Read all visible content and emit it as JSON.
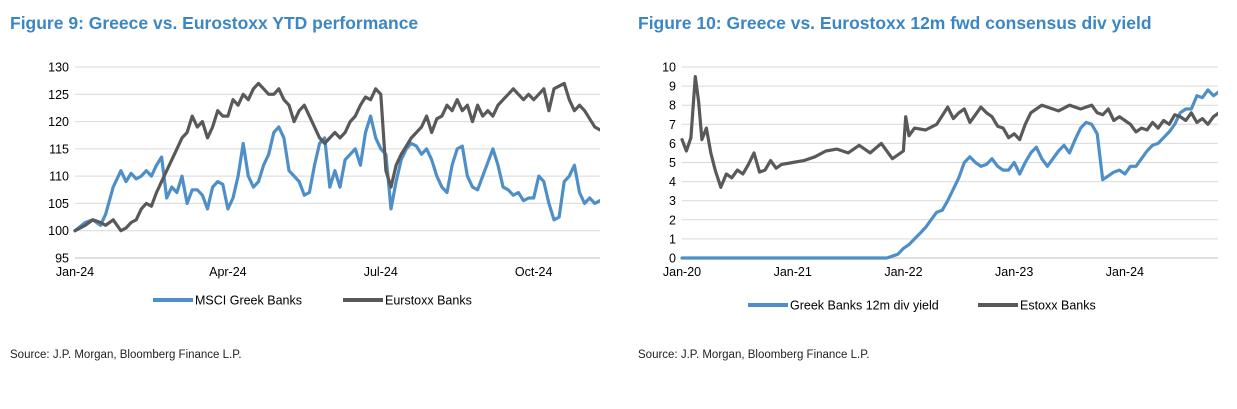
{
  "colors": {
    "title": "#3b86c4",
    "blue_series": "#4f8fc8",
    "grey_series": "#595959",
    "grid": "#d9d9d9"
  },
  "charts": [
    {
      "title": "Figure 9: Greece vs. Eurostoxx YTD performance",
      "source": "Source: J.P. Morgan, Bloomberg Finance L.P."
    },
    {
      "title": "Figure 10: Greece vs. Eurostoxx 12m fwd consensus div yield",
      "source": "Source: J.P. Morgan, Bloomberg Finance L.P."
    }
  ],
  "chart_data": [
    {
      "type": "line",
      "title": "Figure 9: Greece vs. Eurostoxx YTD performance",
      "ylim": [
        95,
        130
      ],
      "yticks": [
        95,
        100,
        105,
        110,
        115,
        120,
        125,
        130
      ],
      "xlim": [
        0,
        10.4
      ],
      "xtick_labels": [
        "Jan-24",
        "Apr-24",
        "Jul-24",
        "Oct-24"
      ],
      "xtick_positions": [
        0,
        3,
        6,
        9
      ],
      "grid": true,
      "legend_position": "bottom",
      "series": [
        {
          "name": "MSCI Greek Banks",
          "color": "#4f8fc8",
          "x": [
            0,
            0.2,
            0.35,
            0.5,
            0.6,
            0.75,
            0.9,
            1.0,
            1.1,
            1.2,
            1.3,
            1.4,
            1.5,
            1.6,
            1.7,
            1.8,
            1.9,
            2.0,
            2.1,
            2.2,
            2.3,
            2.4,
            2.5,
            2.6,
            2.7,
            2.8,
            2.9,
            3.0,
            3.1,
            3.2,
            3.3,
            3.4,
            3.5,
            3.6,
            3.7,
            3.8,
            3.9,
            4.0,
            4.1,
            4.2,
            4.3,
            4.4,
            4.5,
            4.6,
            4.7,
            4.8,
            4.9,
            5.0,
            5.1,
            5.2,
            5.3,
            5.4,
            5.5,
            5.6,
            5.7,
            5.8,
            5.9,
            6.0,
            6.1,
            6.2,
            6.3,
            6.4,
            6.5,
            6.6,
            6.7,
            6.8,
            6.9,
            7.0,
            7.1,
            7.2,
            7.3,
            7.4,
            7.5,
            7.6,
            7.7,
            7.8,
            7.9,
            8.0,
            8.1,
            8.2,
            8.3,
            8.4,
            8.5,
            8.6,
            8.7,
            8.8,
            8.9,
            9.0,
            9.1,
            9.2,
            9.3,
            9.4,
            9.5,
            9.6,
            9.7,
            9.8,
            9.9,
            10.0,
            10.1,
            10.2,
            10.3
          ],
          "values": [
            100,
            101.5,
            102,
            101,
            103,
            108,
            111,
            109,
            110.5,
            109.5,
            110,
            111,
            110,
            112,
            113.5,
            106,
            108,
            107,
            110,
            105,
            107.5,
            107.5,
            106.5,
            104,
            108,
            109,
            108.5,
            104,
            106,
            110,
            116,
            110,
            108,
            109,
            112,
            114,
            118,
            119,
            117,
            111,
            110,
            109,
            106.5,
            107,
            112,
            116,
            117,
            108,
            111,
            108,
            113,
            114,
            115,
            112,
            118,
            121,
            117,
            115,
            114,
            104,
            109,
            113,
            115,
            116,
            115.5,
            114,
            115,
            113,
            110,
            108,
            107,
            112,
            115,
            115.5,
            110,
            108,
            107.5,
            110,
            112.5,
            115,
            112,
            108,
            107.5,
            106.5,
            107,
            105.5,
            106,
            106,
            110,
            109,
            105,
            102,
            102.5,
            109,
            110,
            112,
            107,
            105,
            106,
            105,
            105.5
          ]
        },
        {
          "name": "Eurstoxx Banks",
          "color": "#595959",
          "x": [
            0,
            0.2,
            0.35,
            0.5,
            0.6,
            0.75,
            0.9,
            1.0,
            1.1,
            1.2,
            1.3,
            1.4,
            1.5,
            1.6,
            1.7,
            1.8,
            1.9,
            2.0,
            2.1,
            2.2,
            2.3,
            2.4,
            2.5,
            2.6,
            2.7,
            2.8,
            2.9,
            3.0,
            3.1,
            3.2,
            3.3,
            3.4,
            3.5,
            3.6,
            3.7,
            3.8,
            3.9,
            4.0,
            4.1,
            4.2,
            4.3,
            4.4,
            4.5,
            4.6,
            4.7,
            4.8,
            4.9,
            5.0,
            5.1,
            5.2,
            5.3,
            5.4,
            5.5,
            5.6,
            5.7,
            5.8,
            5.9,
            6.0,
            6.1,
            6.2,
            6.3,
            6.4,
            6.5,
            6.6,
            6.7,
            6.8,
            6.9,
            7.0,
            7.1,
            7.2,
            7.3,
            7.4,
            7.5,
            7.6,
            7.7,
            7.8,
            7.9,
            8.0,
            8.1,
            8.2,
            8.3,
            8.4,
            8.5,
            8.6,
            8.7,
            8.8,
            8.9,
            9.0,
            9.1,
            9.2,
            9.3,
            9.4,
            9.5,
            9.6,
            9.7,
            9.8,
            9.9,
            10.0,
            10.1,
            10.2,
            10.3
          ],
          "values": [
            100,
            101,
            102,
            101.5,
            101,
            102,
            100,
            100.5,
            101.5,
            102,
            104,
            105,
            104.5,
            107,
            109,
            111,
            113,
            115,
            117,
            118,
            121,
            119,
            120,
            117,
            119,
            122,
            121,
            121,
            124,
            123,
            125,
            124,
            126,
            127,
            126,
            125,
            125,
            126,
            124,
            123,
            120,
            122,
            123,
            121,
            119,
            117,
            116,
            117,
            118,
            117,
            118,
            120,
            121,
            123,
            124.5,
            124,
            126,
            125,
            111,
            108,
            112,
            114,
            115.5,
            117,
            118,
            119,
            121,
            118,
            120.5,
            121,
            123,
            122,
            124,
            122,
            123,
            120,
            123,
            121,
            122,
            121,
            123,
            124,
            125,
            126,
            125,
            124,
            125,
            124,
            125,
            126,
            122,
            126,
            126.5,
            127,
            124,
            122,
            123,
            122,
            120.5,
            119,
            118.5
          ]
        }
      ]
    },
    {
      "type": "line",
      "title": "Figure 10: Greece vs. Eurostoxx 12m fwd consensus div yield",
      "ylim": [
        0,
        10
      ],
      "yticks": [
        0,
        1,
        2,
        3,
        4,
        5,
        6,
        7,
        8,
        9,
        10
      ],
      "xlim": [
        0,
        4.85
      ],
      "xtick_labels": [
        "Jan-20",
        "Jan-21",
        "Jan-22",
        "Jan-23",
        "Jan-24"
      ],
      "xtick_positions": [
        0,
        1,
        2,
        3,
        4
      ],
      "grid": true,
      "legend_position": "bottom",
      "series": [
        {
          "name": "Greek Banks 12m div yield",
          "color": "#4f8fc8",
          "x": [
            0,
            1.85,
            1.95,
            2.0,
            2.05,
            2.1,
            2.15,
            2.2,
            2.25,
            2.3,
            2.35,
            2.4,
            2.45,
            2.5,
            2.55,
            2.6,
            2.65,
            2.7,
            2.75,
            2.8,
            2.85,
            2.9,
            2.95,
            3.0,
            3.05,
            3.1,
            3.15,
            3.2,
            3.25,
            3.3,
            3.35,
            3.4,
            3.45,
            3.5,
            3.55,
            3.6,
            3.65,
            3.7,
            3.75,
            3.8,
            3.85,
            3.9,
            3.95,
            4.0,
            4.05,
            4.1,
            4.15,
            4.2,
            4.25,
            4.3,
            4.35,
            4.4,
            4.45,
            4.5,
            4.55,
            4.6,
            4.65,
            4.7,
            4.75,
            4.8,
            4.85
          ],
          "values": [
            0,
            0,
            0.2,
            0.5,
            0.7,
            1.0,
            1.3,
            1.6,
            2.0,
            2.4,
            2.5,
            3.0,
            3.6,
            4.2,
            5.0,
            5.3,
            5.0,
            4.8,
            4.9,
            5.2,
            4.8,
            4.6,
            4.6,
            5.0,
            4.4,
            5.0,
            5.5,
            5.8,
            5.2,
            4.8,
            5.2,
            5.6,
            5.9,
            5.5,
            6.2,
            6.8,
            7.1,
            7.0,
            6.5,
            4.1,
            4.3,
            4.5,
            4.6,
            4.4,
            4.8,
            4.8,
            5.2,
            5.6,
            5.9,
            6.0,
            6.3,
            6.6,
            7.0,
            7.6,
            7.8,
            7.8,
            8.5,
            8.4,
            8.8,
            8.5,
            8.7
          ]
        },
        {
          "name": "Estoxx Banks",
          "color": "#595959",
          "x": [
            0,
            0.04,
            0.08,
            0.12,
            0.15,
            0.18,
            0.22,
            0.26,
            0.3,
            0.35,
            0.4,
            0.45,
            0.5,
            0.55,
            0.6,
            0.65,
            0.7,
            0.75,
            0.8,
            0.85,
            0.9,
            1.0,
            1.1,
            1.2,
            1.3,
            1.4,
            1.5,
            1.6,
            1.7,
            1.8,
            1.9,
            2.0,
            2.02,
            2.05,
            2.1,
            2.2,
            2.3,
            2.4,
            2.45,
            2.5,
            2.55,
            2.6,
            2.65,
            2.7,
            2.75,
            2.8,
            2.85,
            2.9,
            2.95,
            3.0,
            3.05,
            3.1,
            3.15,
            3.2,
            3.25,
            3.3,
            3.4,
            3.5,
            3.6,
            3.7,
            3.75,
            3.8,
            3.85,
            3.9,
            3.95,
            4.0,
            4.05,
            4.1,
            4.15,
            4.2,
            4.25,
            4.3,
            4.35,
            4.4,
            4.45,
            4.5,
            4.55,
            4.6,
            4.65,
            4.7,
            4.75,
            4.8,
            4.85
          ],
          "values": [
            6.2,
            5.6,
            6.3,
            9.5,
            8.2,
            6.2,
            6.8,
            5.5,
            4.6,
            3.7,
            4.4,
            4.2,
            4.6,
            4.4,
            4.9,
            5.5,
            4.5,
            4.6,
            5.1,
            4.7,
            4.9,
            5.0,
            5.1,
            5.3,
            5.6,
            5.7,
            5.5,
            5.9,
            5.5,
            6.0,
            5.2,
            5.6,
            7.4,
            6.4,
            6.8,
            6.7,
            7.0,
            7.9,
            7.3,
            7.6,
            7.8,
            7.1,
            7.5,
            7.9,
            7.6,
            7.4,
            6.9,
            6.8,
            6.3,
            6.5,
            6.2,
            7.0,
            7.6,
            7.8,
            8.0,
            7.9,
            7.7,
            8.0,
            7.8,
            8.0,
            7.6,
            7.5,
            7.8,
            7.2,
            7.4,
            7.2,
            7.0,
            6.6,
            6.8,
            6.7,
            7.1,
            6.8,
            7.2,
            7.0,
            7.5,
            7.4,
            7.2,
            7.6,
            7.1,
            7.3,
            7.0,
            7.4,
            7.6
          ]
        }
      ]
    }
  ]
}
